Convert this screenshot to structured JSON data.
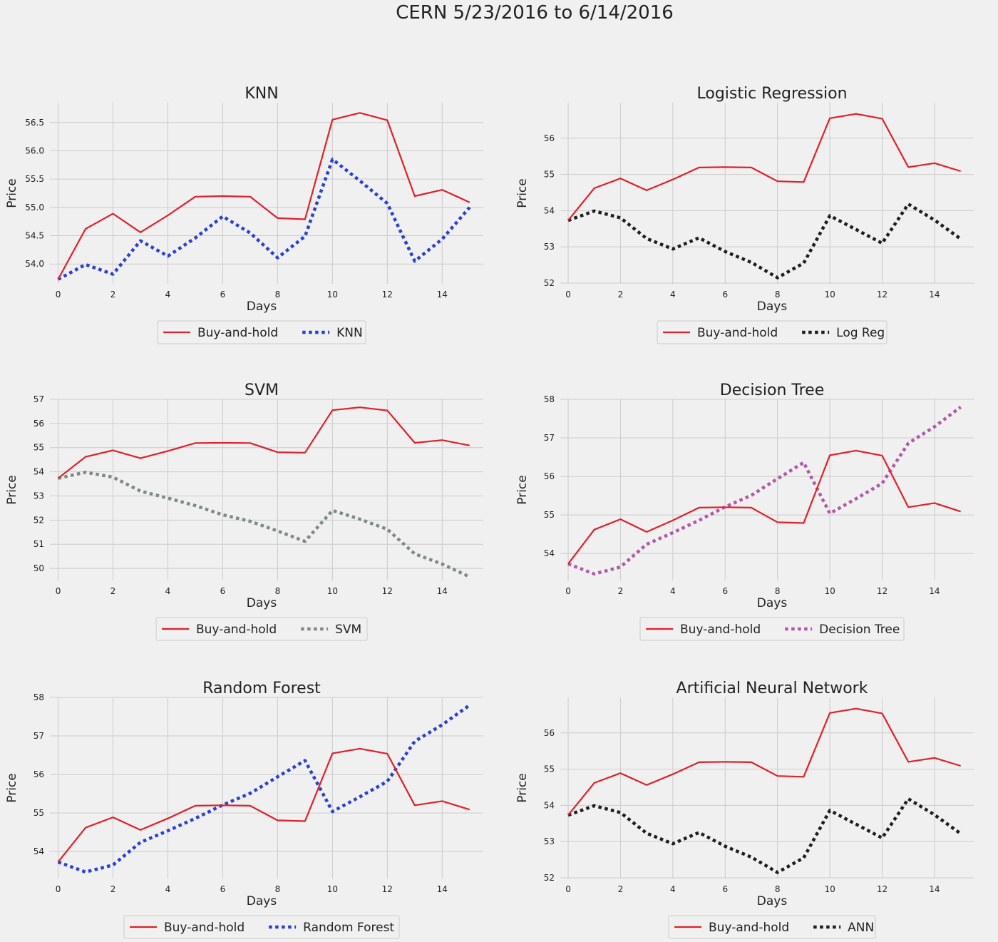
{
  "figure": {
    "title": "CERN 5/23/2016 to 6/14/2016"
  },
  "colors": {
    "background": "#f0f0f0",
    "grid": "#cbcbcb",
    "buy_and_hold": "#e0202b",
    "knn": "#2a3fd6",
    "logreg": "#1e1e1e",
    "svm": "#7d8a87",
    "decision_tree": "#b05aa6",
    "random_forest": "#2a3fd6",
    "ann": "#1e1e1e"
  },
  "chart_data": [
    {
      "type": "line",
      "title": "KNN",
      "xlabel": "Days",
      "ylabel": "Price",
      "x": [
        0,
        1,
        2,
        3,
        4,
        5,
        6,
        7,
        8,
        9,
        10,
        11,
        12,
        13,
        14,
        15
      ],
      "xticks": [
        0,
        2,
        4,
        6,
        8,
        10,
        12,
        14
      ],
      "xlim": [
        -0.3,
        15.5
      ],
      "ylim": [
        53.65,
        56.85
      ],
      "yticks": [
        54.0,
        54.5,
        55.0,
        55.5,
        56.0,
        56.5
      ],
      "ytick_labels": [
        "54.0",
        "54.5",
        "55.0",
        "55.5",
        "56.0",
        "56.5"
      ],
      "legend": "bottom-center",
      "grid": true,
      "series": [
        {
          "name": "Buy-and-hold",
          "style": "solid",
          "color_key": "buy_and_hold",
          "values": [
            53.73,
            54.62,
            54.89,
            54.56,
            54.86,
            55.19,
            55.2,
            55.19,
            54.81,
            54.79,
            56.55,
            56.67,
            56.54,
            55.2,
            55.31,
            55.09
          ]
        },
        {
          "name": "KNN",
          "style": "dotted",
          "color_key": "knn",
          "values": [
            53.73,
            53.99,
            53.82,
            54.41,
            54.14,
            54.46,
            54.84,
            54.55,
            54.11,
            54.49,
            55.85,
            55.47,
            55.07,
            54.05,
            54.44,
            55.0
          ]
        }
      ]
    },
    {
      "type": "line",
      "title": "Logistic Regression",
      "xlabel": "Days",
      "ylabel": "Price",
      "x": [
        0,
        1,
        2,
        3,
        4,
        5,
        6,
        7,
        8,
        9,
        10,
        11,
        12,
        13,
        14,
        15
      ],
      "xticks": [
        0,
        2,
        4,
        6,
        8,
        10,
        12,
        14
      ],
      "xlim": [
        -0.3,
        15.5
      ],
      "ylim": [
        51.98,
        56.98
      ],
      "yticks": [
        52,
        53,
        54,
        55,
        56
      ],
      "ytick_labels": [
        "52",
        "53",
        "54",
        "55",
        "56"
      ],
      "legend": "bottom-center",
      "grid": true,
      "series": [
        {
          "name": "Buy-and-hold",
          "style": "solid",
          "color_key": "buy_and_hold",
          "values": [
            53.73,
            54.62,
            54.89,
            54.56,
            54.86,
            55.19,
            55.2,
            55.19,
            54.81,
            54.79,
            56.55,
            56.67,
            56.54,
            55.2,
            55.31,
            55.09
          ]
        },
        {
          "name": "Log Reg",
          "style": "dotted",
          "color_key": "logreg",
          "values": [
            53.73,
            53.99,
            53.8,
            53.23,
            52.94,
            53.25,
            52.87,
            52.57,
            52.15,
            52.55,
            53.86,
            53.48,
            53.1,
            54.18,
            53.74,
            53.22
          ]
        }
      ]
    },
    {
      "type": "line",
      "title": "SVM",
      "xlabel": "Days",
      "ylabel": "Price",
      "x": [
        0,
        1,
        2,
        3,
        4,
        5,
        6,
        7,
        8,
        9,
        10,
        11,
        12,
        13,
        14,
        15
      ],
      "xticks": [
        0,
        2,
        4,
        6,
        8,
        10,
        12,
        14
      ],
      "xlim": [
        -0.3,
        15.5
      ],
      "ylim": [
        49.5,
        57.0
      ],
      "yticks": [
        50,
        51,
        52,
        53,
        54,
        55,
        56,
        57
      ],
      "ytick_labels": [
        "50",
        "51",
        "52",
        "53",
        "54",
        "55",
        "56",
        "57"
      ],
      "legend": "bottom-center",
      "grid": true,
      "series": [
        {
          "name": "Buy-and-hold",
          "style": "solid",
          "color_key": "buy_and_hold",
          "values": [
            53.73,
            54.62,
            54.89,
            54.56,
            54.86,
            55.19,
            55.2,
            55.19,
            54.81,
            54.79,
            56.55,
            56.67,
            56.54,
            55.2,
            55.31,
            55.09
          ]
        },
        {
          "name": "SVM",
          "style": "dotted",
          "color_key": "svm",
          "values": [
            53.73,
            53.98,
            53.78,
            53.2,
            52.91,
            52.6,
            52.22,
            51.95,
            51.55,
            51.12,
            52.4,
            52.04,
            51.62,
            50.6,
            50.18,
            49.65
          ]
        }
      ]
    },
    {
      "type": "line",
      "title": "Decision Tree",
      "xlabel": "Days",
      "ylabel": "Price",
      "x": [
        0,
        1,
        2,
        3,
        4,
        5,
        6,
        7,
        8,
        9,
        10,
        11,
        12,
        13,
        14,
        15
      ],
      "xticks": [
        0,
        2,
        4,
        6,
        8,
        10,
        12,
        14
      ],
      "xlim": [
        -0.3,
        15.5
      ],
      "ylim": [
        53.3,
        58.0
      ],
      "yticks": [
        54,
        55,
        56,
        57,
        58
      ],
      "ytick_labels": [
        "54",
        "55",
        "56",
        "57",
        "58"
      ],
      "legend": "bottom-center",
      "grid": true,
      "series": [
        {
          "name": "Buy-and-hold",
          "style": "solid",
          "color_key": "buy_and_hold",
          "values": [
            53.73,
            54.62,
            54.89,
            54.56,
            54.86,
            55.19,
            55.2,
            55.19,
            54.81,
            54.79,
            56.55,
            56.67,
            56.54,
            55.2,
            55.31,
            55.09
          ]
        },
        {
          "name": "Decision Tree",
          "style": "dotted",
          "color_key": "decision_tree",
          "values": [
            53.73,
            53.47,
            53.65,
            54.24,
            54.54,
            54.86,
            55.21,
            55.51,
            55.94,
            56.36,
            55.04,
            55.42,
            55.82,
            56.86,
            57.29,
            57.8
          ]
        }
      ]
    },
    {
      "type": "line",
      "title": "Random Forest",
      "xlabel": "Days",
      "ylabel": "Price",
      "x": [
        0,
        1,
        2,
        3,
        4,
        5,
        6,
        7,
        8,
        9,
        10,
        11,
        12,
        13,
        14,
        15
      ],
      "xticks": [
        0,
        2,
        4,
        6,
        8,
        10,
        12,
        14
      ],
      "xlim": [
        -0.3,
        15.5
      ],
      "ylim": [
        53.3,
        58.0
      ],
      "yticks": [
        54,
        55,
        56,
        57,
        58
      ],
      "ytick_labels": [
        "54",
        "55",
        "56",
        "57",
        "58"
      ],
      "legend": "bottom-center",
      "grid": true,
      "series": [
        {
          "name": "Buy-and-hold",
          "style": "solid",
          "color_key": "buy_and_hold",
          "values": [
            53.73,
            54.62,
            54.89,
            54.56,
            54.86,
            55.19,
            55.2,
            55.19,
            54.81,
            54.79,
            56.55,
            56.67,
            56.54,
            55.2,
            55.31,
            55.09
          ]
        },
        {
          "name": "Random Forest",
          "style": "dotted",
          "color_key": "random_forest",
          "values": [
            53.73,
            53.47,
            53.65,
            54.24,
            54.54,
            54.86,
            55.21,
            55.51,
            55.94,
            56.36,
            55.04,
            55.42,
            55.82,
            56.86,
            57.29,
            57.8
          ]
        }
      ]
    },
    {
      "type": "line",
      "title": "Artificial Neural Network",
      "xlabel": "Days",
      "ylabel": "Price",
      "x": [
        0,
        1,
        2,
        3,
        4,
        5,
        6,
        7,
        8,
        9,
        10,
        11,
        12,
        13,
        14,
        15
      ],
      "xticks": [
        0,
        2,
        4,
        6,
        8,
        10,
        12,
        14
      ],
      "xlim": [
        -0.3,
        15.5
      ],
      "ylim": [
        51.98,
        56.98
      ],
      "yticks": [
        52,
        53,
        54,
        55,
        56
      ],
      "ytick_labels": [
        "52",
        "53",
        "54",
        "55",
        "56"
      ],
      "legend": "bottom-center",
      "grid": true,
      "series": [
        {
          "name": "Buy-and-hold",
          "style": "solid",
          "color_key": "buy_and_hold",
          "values": [
            53.73,
            54.62,
            54.89,
            54.56,
            54.86,
            55.19,
            55.2,
            55.19,
            54.81,
            54.79,
            56.55,
            56.67,
            56.54,
            55.2,
            55.31,
            55.09
          ]
        },
        {
          "name": "ANN",
          "style": "dotted",
          "color_key": "ann",
          "values": [
            53.73,
            53.99,
            53.8,
            53.23,
            52.94,
            53.25,
            52.87,
            52.57,
            52.15,
            52.55,
            53.86,
            53.48,
            53.1,
            54.18,
            53.74,
            53.22
          ]
        }
      ]
    }
  ]
}
